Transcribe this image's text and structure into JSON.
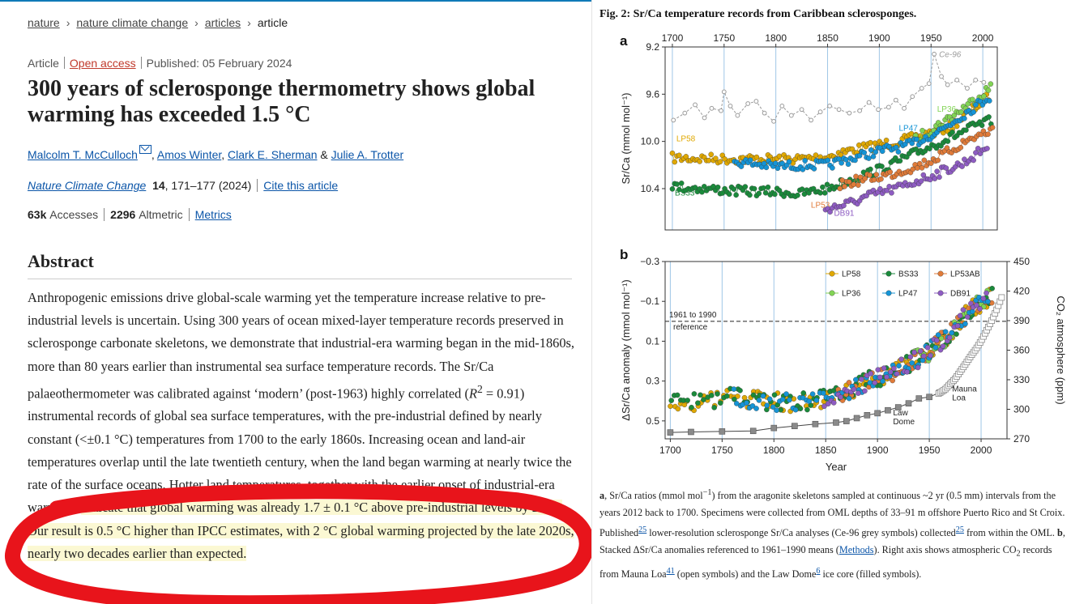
{
  "breadcrumb": {
    "items": [
      "nature",
      "nature climate change",
      "articles"
    ],
    "current": "article",
    "separator": "›"
  },
  "meta": {
    "type": "Article",
    "access": "Open access",
    "published": "Published: 05 February 2024"
  },
  "title": "300 years of sclerosponge thermometry shows global warming has exceeded 1.5 °C",
  "authors": {
    "list": [
      "Malcolm T. McCulloch",
      "Amos Winter",
      "Clark E. Sherman",
      "Julie A. Trotter"
    ],
    "comma": ",",
    "amp": "&"
  },
  "journal": {
    "name": "Nature Climate Change",
    "volume": "14",
    "pages": ", 171–177 (2024)",
    "cite": "Cite this article"
  },
  "metrics": {
    "accesses_num": "63k",
    "accesses_label": "Accesses",
    "altmetric_num": "2296",
    "altmetric_label": "Altmetric",
    "metrics_link": "Metrics"
  },
  "abstract": {
    "heading": "Abstract",
    "p1": "Anthropogenic emissions drive global-scale warming yet the temperature increase relative to pre-industrial levels is uncertain. Using 300 years of ocean mixed-layer temperature records preserved in sclerosponge carbonate skeletons, we demonstrate that industrial-era warming began in the mid-1860s, more than 80 years earlier than instrumental sea surface temperature records. The Sr/Ca palaeothermometer was calibrated against ‘modern’ (post-1963) highly correlated (",
    "r": "R",
    "r_sup": "2",
    "p2": " = 0.91) instrumental records of global sea surface temperatures, with the pre-industrial defined by nearly constant (<±0.1 °C) temperatures from 1700 to the early 1860s. Increasing ocean and land-air temperatures overlap until the late twentieth century, when the land began warming at nearly twice the rate of the surface oceans. Hotter land temperatures, together with the earlier onset of industrial-era warming, ",
    "highlight": "indicate that global warming was already 1.7 ± 0.1 °C above pre-industrial levels by 2020. Our result is 0.5 °C higher than IPCC estimates, with 2 °C global warming projected by the late 2020s, nearly two decades earlier than expected."
  },
  "annotation": {
    "oval_color": "#e8141b"
  },
  "figure": {
    "title": "Fig. 2: Sr/Ca temperature records from Caribbean sclerosponges.",
    "caption": {
      "a_label": "a",
      "a1": ", Sr/Ca ratios (mmol mol",
      "a_sup": "−1",
      "a2": ") from the aragonite skeletons sampled at continuous ~2 yr (0.5 mm) intervals from the years 2012 back to 1700. Specimens were collected from OML depths of 33–91 m offshore Puerto Rico and St Croix. Published",
      "ref1": "25",
      "a3": " lower-resolution sclerosponge Sr/Ca analyses (Ce-96 grey symbols) collected",
      "ref2": "25",
      "a4": " from within the OML. ",
      "b_label": "b",
      "b1": ", Stacked ΔSr/Ca anomalies referenced to 1961–1990 means (",
      "methods": "Methods",
      "b2": "). Right axis shows atmospheric CO",
      "co2_sub": "2",
      "b3": " records from Mauna Loa",
      "ref3": "41",
      "b4": " (open symbols) and the Law Dome",
      "ref4": "6",
      "b5": " ice core (filled symbols)."
    }
  },
  "chart_data": [
    {
      "panel": "a",
      "type": "scatter",
      "xlabel": "",
      "ylabel": "Sr/Ca (mmol mol⁻¹)",
      "x_ticks": [
        1700,
        1750,
        1800,
        1850,
        1900,
        1950,
        2000
      ],
      "y_ticks": [
        9.2,
        9.6,
        10.0,
        10.4
      ],
      "xlim": [
        1693,
        2014
      ],
      "ylim": [
        9.2,
        10.75
      ],
      "y_inverted": true,
      "series": [
        {
          "name": "Ce-96",
          "color": "#9a9a9a",
          "style": "dashed-open",
          "points": [
            [
              1701,
              9.82
            ],
            [
              1712,
              9.76
            ],
            [
              1722,
              9.69
            ],
            [
              1731,
              9.8
            ],
            [
              1738,
              9.72
            ],
            [
              1747,
              9.74
            ],
            [
              1750,
              9.58
            ],
            [
              1756,
              9.7
            ],
            [
              1763,
              9.78
            ],
            [
              1773,
              9.68
            ],
            [
              1781,
              9.66
            ],
            [
              1789,
              9.76
            ],
            [
              1798,
              9.83
            ],
            [
              1806,
              9.7
            ],
            [
              1815,
              9.78
            ],
            [
              1825,
              9.73
            ],
            [
              1834,
              9.82
            ],
            [
              1843,
              9.75
            ],
            [
              1852,
              9.7
            ],
            [
              1861,
              9.73
            ],
            [
              1871,
              9.76
            ],
            [
              1881,
              9.74
            ],
            [
              1890,
              9.67
            ],
            [
              1899,
              9.73
            ],
            [
              1909,
              9.71
            ],
            [
              1916,
              9.65
            ],
            [
              1924,
              9.72
            ],
            [
              1932,
              9.62
            ],
            [
              1941,
              9.55
            ],
            [
              1948,
              9.51
            ],
            [
              1953,
              9.26
            ],
            [
              1960,
              9.45
            ],
            [
              1966,
              9.52
            ],
            [
              1975,
              9.48
            ],
            [
              1985,
              9.55
            ],
            [
              1993,
              9.48
            ],
            [
              2001,
              9.5
            ]
          ]
        },
        {
          "name": "LP58",
          "color": "#e0a800",
          "label_year": 1713,
          "label_val": 10.0,
          "anchors": [
            [
              1700,
              10.14
            ],
            [
              1760,
              10.15
            ],
            [
              1820,
              10.15
            ],
            [
              1850,
              10.13
            ],
            [
              1870,
              10.08
            ],
            [
              1900,
              10.03
            ],
            [
              1920,
              10.0
            ],
            [
              1950,
              9.93
            ],
            [
              1970,
              9.87
            ],
            [
              2000,
              9.66
            ],
            [
              2008,
              9.6
            ]
          ]
        },
        {
          "name": "LP36",
          "color": "#82d455",
          "label_year": 1965,
          "label_val": 9.75,
          "anchors": [
            [
              1935,
              9.98
            ],
            [
              1950,
              9.9
            ],
            [
              1970,
              9.79
            ],
            [
              1990,
              9.66
            ],
            [
              2003,
              9.57
            ],
            [
              2008,
              9.54
            ]
          ]
        },
        {
          "name": "LP47",
          "color": "#1594d6",
          "label_year": 1928,
          "label_val": 9.91,
          "anchors": [
            [
              1760,
              10.17
            ],
            [
              1800,
              10.21
            ],
            [
              1830,
              10.2
            ],
            [
              1850,
              10.2
            ],
            [
              1880,
              10.13
            ],
            [
              1900,
              10.08
            ],
            [
              1930,
              10.03
            ],
            [
              1960,
              9.9
            ],
            [
              1990,
              9.72
            ],
            [
              2008,
              9.61
            ]
          ]
        },
        {
          "name": "BS33",
          "color": "#1a8a3b",
          "label_year": 1712,
          "label_val": 10.46,
          "anchors": [
            [
              1700,
              10.38
            ],
            [
              1760,
              10.42
            ],
            [
              1810,
              10.43
            ],
            [
              1820,
              10.45
            ],
            [
              1850,
              10.4
            ],
            [
              1880,
              10.3
            ],
            [
              1900,
              10.24
            ],
            [
              1930,
              10.12
            ],
            [
              1960,
              10.0
            ],
            [
              1990,
              9.88
            ],
            [
              2010,
              9.82
            ]
          ]
        },
        {
          "name": "LP53",
          "color": "#e07b39",
          "label_year": 1843,
          "label_val": 10.56,
          "anchors": [
            [
              1862,
              10.37
            ],
            [
              1880,
              10.33
            ],
            [
              1910,
              10.28
            ],
            [
              1940,
              10.2
            ],
            [
              1960,
              10.12
            ],
            [
              1990,
              9.97
            ],
            [
              2010,
              9.9
            ]
          ]
        },
        {
          "name": "DB91",
          "color": "#8e5cc2",
          "label_year": 1866,
          "label_val": 10.63,
          "anchors": [
            [
              1848,
              10.57
            ],
            [
              1870,
              10.53
            ],
            [
              1890,
              10.46
            ],
            [
              1920,
              10.39
            ],
            [
              1950,
              10.29
            ],
            [
              1980,
              10.19
            ],
            [
              2005,
              10.04
            ]
          ]
        }
      ]
    },
    {
      "panel": "b",
      "type": "scatter",
      "xlabel": "Year",
      "ylabel": "ΔSr/Ca anomaly (mmol mol⁻¹)",
      "y2label": "CO₂ atmosphere (ppm)",
      "x_ticks": [
        1700,
        1750,
        1800,
        1850,
        1900,
        1950,
        2000
      ],
      "y_ticks": [
        -0.3,
        -0.1,
        0.1,
        0.3,
        0.5
      ],
      "y_tick_labels": [
        "−0.3",
        "−0.1",
        "0.1",
        "0.3",
        "0.5"
      ],
      "y2_ticks": [
        270,
        300,
        330,
        360,
        390,
        420,
        450
      ],
      "xlim": [
        1695,
        2025
      ],
      "ylim": [
        -0.3,
        0.59
      ],
      "y_inverted": true,
      "y2lim": [
        270,
        450
      ],
      "reference": {
        "value": 0.0,
        "label_line1": "1961 to 1990",
        "label_line2": "reference"
      },
      "legend_placement": "top-right",
      "legend": [
        "LP58",
        "BS33",
        "LP53AB",
        "LP36",
        "LP47",
        "DB91"
      ],
      "legend_colors": [
        "#e0a800",
        "#1a8a3b",
        "#e07b39",
        "#82d455",
        "#1594d6",
        "#8e5cc2"
      ],
      "anomaly_anchors": [
        [
          1700,
          0.41
        ],
        [
          1740,
          0.4
        ],
        [
          1760,
          0.38
        ],
        [
          1790,
          0.4
        ],
        [
          1820,
          0.41
        ],
        [
          1850,
          0.39
        ],
        [
          1870,
          0.35
        ],
        [
          1890,
          0.3
        ],
        [
          1910,
          0.27
        ],
        [
          1930,
          0.21
        ],
        [
          1950,
          0.15
        ],
        [
          1970,
          0.06
        ],
        [
          1990,
          -0.06
        ],
        [
          2010,
          -0.13
        ]
      ],
      "co2_law_dome": [
        [
          1700,
          276.5
        ],
        [
          1720,
          277
        ],
        [
          1750,
          277.5
        ],
        [
          1780,
          278
        ],
        [
          1800,
          281
        ],
        [
          1820,
          283
        ],
        [
          1840,
          285
        ],
        [
          1860,
          286.5
        ],
        [
          1870,
          288
        ],
        [
          1880,
          291
        ],
        [
          1890,
          294
        ],
        [
          1900,
          296
        ],
        [
          1910,
          299
        ],
        [
          1920,
          302
        ],
        [
          1930,
          306
        ],
        [
          1940,
          311
        ],
        [
          1950,
          312.5
        ],
        [
          1960,
          317
        ],
        [
          1970,
          325
        ]
      ],
      "co2_mauna_loa": [
        [
          1959,
          316
        ],
        [
          1965,
          320
        ],
        [
          1970,
          325.5
        ],
        [
          1975,
          331
        ],
        [
          1980,
          338.5
        ],
        [
          1985,
          346
        ],
        [
          1990,
          354
        ],
        [
          1995,
          361
        ],
        [
          2000,
          369.5
        ],
        [
          2005,
          379.5
        ],
        [
          2010,
          389.5
        ],
        [
          2015,
          401
        ],
        [
          2020,
          414
        ]
      ],
      "annotations": [
        {
          "text_line1": "Mauna",
          "text_line2": "Loa"
        },
        {
          "text_line1": "Law",
          "text_line2": "Dome"
        }
      ]
    }
  ]
}
